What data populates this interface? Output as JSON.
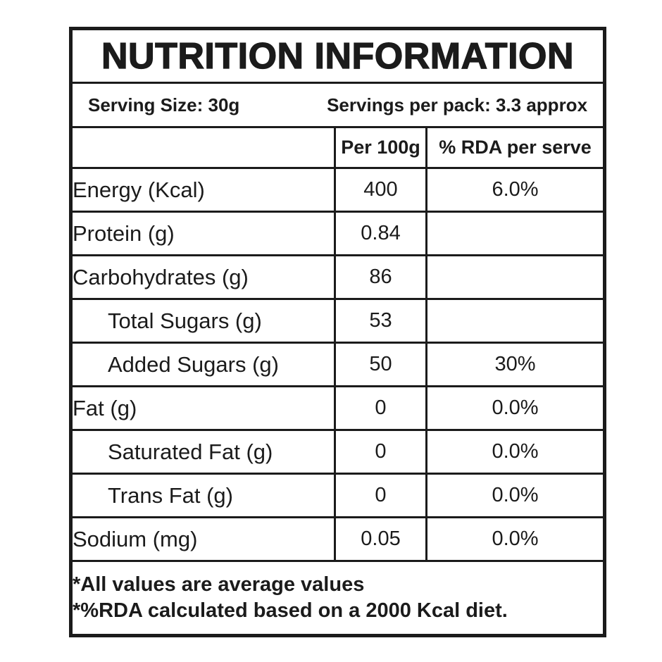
{
  "title": "NUTRITION INFORMATION",
  "serving": {
    "size_label": "Serving Size: 30g",
    "per_pack_label": "Servings per pack: 3.3 approx"
  },
  "table": {
    "columns": [
      "",
      "Per 100g",
      "% RDA per serve"
    ],
    "rows": [
      {
        "label": "Energy (Kcal)",
        "per_100g": "400",
        "rda": "6.0%",
        "indent": false
      },
      {
        "label": "Protein (g)",
        "per_100g": "0.84",
        "rda": "",
        "indent": false
      },
      {
        "label": "Carbohydrates (g)",
        "per_100g": "86",
        "rda": "",
        "indent": false
      },
      {
        "label": "Total Sugars (g)",
        "per_100g": "53",
        "rda": "",
        "indent": true
      },
      {
        "label": "Added Sugars (g)",
        "per_100g": "50",
        "rda": "30%",
        "indent": true
      },
      {
        "label": "Fat (g)",
        "per_100g": "0",
        "rda": "0.0%",
        "indent": false
      },
      {
        "label": "Saturated Fat (g)",
        "per_100g": "0",
        "rda": "0.0%",
        "indent": true
      },
      {
        "label": "Trans Fat (g)",
        "per_100g": "0",
        "rda": "0.0%",
        "indent": true
      },
      {
        "label": "Sodium (mg)",
        "per_100g": "0.05",
        "rda": "0.0%",
        "indent": false
      }
    ]
  },
  "footnotes": [
    "*All values are average values",
    "*%RDA calculated based on a 2000 Kcal diet."
  ],
  "colors": {
    "border": "#1b1b1b",
    "text": "#1b1b1b",
    "background": "#ffffff"
  }
}
